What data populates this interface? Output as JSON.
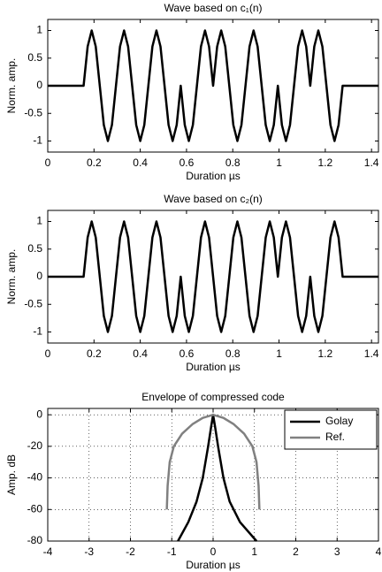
{
  "chart_data": [
    {
      "type": "line",
      "title": "Wave based on c₁(n)",
      "xlabel": "Duration µs",
      "ylabel": "Norm. amp.",
      "xlim": [
        0,
        1.43
      ],
      "xticks": [
        0,
        0.2,
        0.4,
        0.6,
        0.8,
        1,
        1.2,
        1.4
      ],
      "ylim": [
        -1.2,
        1.2
      ],
      "yticks": [
        -1,
        -0.5,
        0,
        0.5,
        1
      ],
      "grid": false,
      "series": [
        {
          "color": "#000000",
          "x": [
            0,
            0.155,
            0.1725,
            0.19,
            0.2075,
            0.225,
            0.2425,
            0.26,
            0.2775,
            0.295,
            0.3125,
            0.33,
            0.3475,
            0.365,
            0.3825,
            0.4,
            0.4175,
            0.435,
            0.4525,
            0.47,
            0.4875,
            0.505,
            0.5225,
            0.54,
            0.5575,
            0.575,
            0.5925,
            0.61,
            0.6275,
            0.645,
            0.6625,
            0.68,
            0.6975,
            0.715,
            0.7325,
            0.75,
            0.7675,
            0.785,
            0.8025,
            0.82,
            0.8375,
            0.855,
            0.8725,
            0.89,
            0.9075,
            0.925,
            0.9425,
            0.96,
            0.9775,
            0.995,
            1.0125,
            1.03,
            1.0475,
            1.065,
            1.0825,
            1.1,
            1.1175,
            1.135,
            1.1525,
            1.17,
            1.1875,
            1.205,
            1.2225,
            1.24,
            1.2575,
            1.275,
            1.43
          ],
          "values": [
            0,
            0,
            0.71,
            1,
            0.71,
            0,
            -0.71,
            -1,
            -0.71,
            0,
            0.71,
            1,
            0.71,
            0,
            -0.71,
            -1,
            -0.71,
            0,
            0.71,
            1,
            0.71,
            0,
            -0.71,
            -1,
            -0.71,
            0,
            -0.71,
            -1,
            -0.71,
            0,
            0.71,
            1,
            0.71,
            0,
            0.71,
            1,
            0.71,
            0,
            -0.71,
            -1,
            -0.71,
            0,
            0.71,
            1,
            0.71,
            0,
            -0.71,
            -1,
            -0.71,
            0,
            -0.71,
            -1,
            -0.71,
            0,
            0.71,
            1,
            0.71,
            0,
            0.71,
            1,
            0.71,
            0,
            -0.71,
            -1,
            -0.71,
            0,
            0
          ]
        }
      ]
    },
    {
      "type": "line",
      "title": "Wave based on c₂(n)",
      "xlabel": "Duration µs",
      "ylabel": "Norm. amp.",
      "xlim": [
        0,
        1.43
      ],
      "xticks": [
        0,
        0.2,
        0.4,
        0.6,
        0.8,
        1,
        1.2,
        1.4
      ],
      "ylim": [
        -1.2,
        1.2
      ],
      "yticks": [
        -1,
        -0.5,
        0,
        0.5,
        1
      ],
      "grid": false,
      "series": [
        {
          "color": "#000000",
          "x": [
            0,
            0.155,
            0.1725,
            0.19,
            0.2075,
            0.225,
            0.2425,
            0.26,
            0.2775,
            0.295,
            0.3125,
            0.33,
            0.3475,
            0.365,
            0.3825,
            0.4,
            0.4175,
            0.435,
            0.4525,
            0.47,
            0.4875,
            0.505,
            0.5225,
            0.54,
            0.5575,
            0.575,
            0.5925,
            0.61,
            0.6275,
            0.645,
            0.6625,
            0.68,
            0.6975,
            0.715,
            0.7325,
            0.75,
            0.7675,
            0.785,
            0.8025,
            0.82,
            0.8375,
            0.855,
            0.8725,
            0.89,
            0.9075,
            0.925,
            0.9425,
            0.96,
            0.9775,
            0.995,
            1.0125,
            1.03,
            1.0475,
            1.065,
            1.0825,
            1.1,
            1.1175,
            1.135,
            1.1525,
            1.17,
            1.1875,
            1.205,
            1.2225,
            1.24,
            1.2575,
            1.275,
            1.43
          ],
          "values": [
            0,
            0,
            0.71,
            1,
            0.71,
            0,
            -0.71,
            -1,
            -0.71,
            0,
            0.71,
            1,
            0.71,
            0,
            -0.71,
            -1,
            -0.71,
            0,
            0.71,
            1,
            0.71,
            0,
            -0.71,
            -1,
            -0.71,
            0,
            -0.71,
            -1,
            -0.71,
            0,
            0.71,
            1,
            0.71,
            0,
            -0.71,
            -1,
            -0.71,
            0,
            0.71,
            1,
            0.71,
            0,
            -0.71,
            -1,
            -0.71,
            0,
            0.71,
            1,
            0.71,
            0,
            0.71,
            1,
            0.71,
            0,
            -0.71,
            -1,
            -0.71,
            0,
            -0.71,
            -1,
            -0.71,
            0,
            0.71,
            1,
            0.71,
            0,
            0
          ]
        }
      ]
    },
    {
      "type": "line",
      "title": "Envelope of compressed code",
      "xlabel": "Duration µs",
      "ylabel": "Amp. dB",
      "xlim": [
        -4,
        4
      ],
      "xticks": [
        -4,
        -3,
        -2,
        -1,
        0,
        1,
        2,
        3,
        4
      ],
      "ylim": [
        -80,
        4
      ],
      "yticks": [
        -80,
        -60,
        -40,
        -20,
        0
      ],
      "grid": true,
      "legend": "upper right",
      "series": [
        {
          "name": "Golay",
          "color": "#000000",
          "x": [
            -0.85,
            -0.6,
            -0.4,
            -0.25,
            -0.12,
            -0.05,
            0,
            0.05,
            0.12,
            0.25,
            0.4,
            0.65,
            1.05
          ],
          "values": [
            -80,
            -68,
            -55,
            -40,
            -20,
            -8,
            0,
            -8,
            -20,
            -40,
            -55,
            -68,
            -80
          ]
        },
        {
          "name": "Ref.",
          "color": "#808080",
          "x": [
            -1.12,
            -1.1,
            -1.05,
            -0.95,
            -0.75,
            -0.5,
            -0.25,
            0,
            0.25,
            0.5,
            0.75,
            0.95,
            1.05,
            1.1,
            1.12
          ],
          "values": [
            -60,
            -45,
            -30,
            -20,
            -12,
            -6,
            -2,
            0,
            -2,
            -6,
            -12,
            -20,
            -30,
            -45,
            -60
          ]
        }
      ]
    }
  ]
}
